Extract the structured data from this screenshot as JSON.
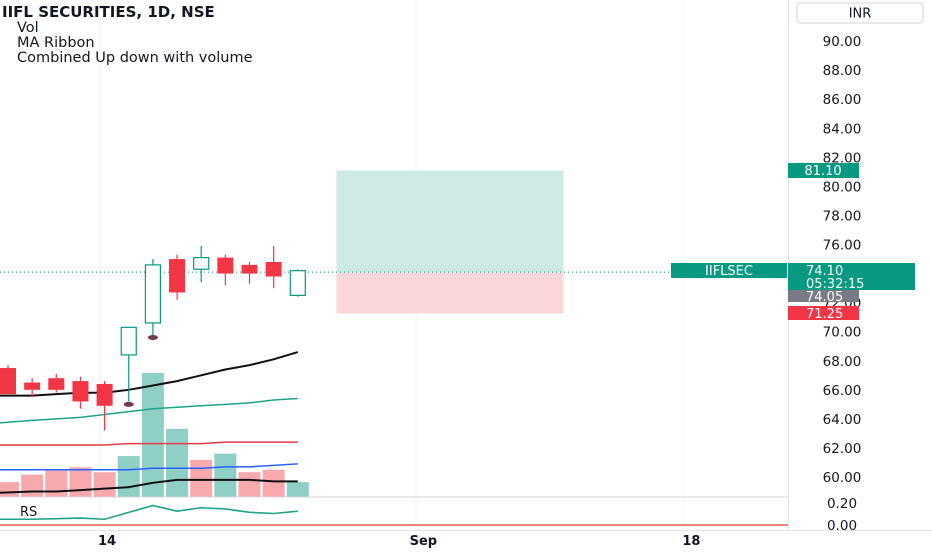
{
  "legend": {
    "title": "IIFL SECURITIES, 1D, NSE",
    "indicators": [
      "Vol",
      "MA Ribbon",
      "Combined Up down with volume"
    ]
  },
  "currency": "INR",
  "price_axis": {
    "ticks": [
      "90.00",
      "88.00",
      "86.00",
      "84.00",
      "82.00",
      "80.00",
      "78.00",
      "76.00",
      "74.00",
      "72.00",
      "70.00",
      "68.00",
      "66.00",
      "64.00",
      "62.00",
      "60.00"
    ],
    "sub_ticks": [
      "0.20",
      "0.00"
    ]
  },
  "time_axis": {
    "labels": [
      {
        "text": "14",
        "bar": 4.1
      },
      {
        "text": "Sep",
        "bar": 17.2
      },
      {
        "text": "18",
        "bar": 28.3
      }
    ]
  },
  "rs_label": "RS",
  "badges": {
    "symbol": "IIFLSEC",
    "last_price": "74.10",
    "countdown": "05:32:15",
    "grey_price": "74.05",
    "target": "81.10",
    "stop": "71.25"
  },
  "colors": {
    "up": "#089981",
    "down": "#f23645",
    "vol_up": "#8fcfc6",
    "vol_down": "#f7a9ad",
    "target_zone": "#cdeae5",
    "stop_zone": "#fbd7d9",
    "ma_black": "#111111",
    "ma_green": "#1ea38a",
    "ma_red": "#e03a44",
    "ma_blue": "#2962ff"
  },
  "chart_data": {
    "type": "candlestick",
    "title": "IIFL SECURITIES, 1D, NSE",
    "ylim": [
      59.0,
      91.0
    ],
    "candles": [
      {
        "o": 67.5,
        "h": 67.7,
        "l": 65.7,
        "c": 65.7
      },
      {
        "o": 66.5,
        "h": 66.8,
        "l": 65.5,
        "c": 66.0
      },
      {
        "o": 66.8,
        "h": 67.1,
        "l": 65.8,
        "c": 66.0
      },
      {
        "o": 66.6,
        "h": 66.9,
        "l": 64.7,
        "c": 65.2
      },
      {
        "o": 66.4,
        "h": 66.6,
        "l": 63.2,
        "c": 64.9
      },
      {
        "o": 68.4,
        "h": 70.3,
        "l": 65.2,
        "c": 70.3
      },
      {
        "o": 70.6,
        "h": 75.0,
        "l": 69.4,
        "c": 74.6
      },
      {
        "o": 75.0,
        "h": 75.3,
        "l": 72.2,
        "c": 72.7
      },
      {
        "o": 74.3,
        "h": 75.9,
        "l": 73.4,
        "c": 75.1
      },
      {
        "o": 75.1,
        "h": 75.3,
        "l": 73.2,
        "c": 74.0
      },
      {
        "o": 74.6,
        "h": 74.8,
        "l": 73.3,
        "c": 74.0
      },
      {
        "o": 74.8,
        "h": 75.9,
        "l": 73.0,
        "c": 73.8
      },
      {
        "o": 72.5,
        "h": 74.3,
        "l": 72.4,
        "c": 74.2
      }
    ],
    "volume": {
      "ylim": [
        0,
        100
      ],
      "values": [
        12,
        18,
        22,
        24,
        20,
        33,
        100,
        55,
        30,
        35,
        20,
        22,
        12
      ],
      "directions": [
        "down",
        "down",
        "down",
        "down",
        "down",
        "up",
        "up",
        "up",
        "down",
        "up",
        "down",
        "down",
        "up"
      ]
    },
    "ma_ribbon": [
      {
        "color": "#111111",
        "values": [
          65.6,
          65.6,
          65.7,
          65.8,
          65.8,
          66.0,
          66.3,
          66.6,
          67.0,
          67.4,
          67.7,
          68.1,
          68.6
        ]
      },
      {
        "color": "#1ea38a",
        "values": [
          63.7,
          63.9,
          64.0,
          64.1,
          64.3,
          64.5,
          64.7,
          64.8,
          64.9,
          65.0,
          65.1,
          65.3,
          65.4
        ]
      },
      {
        "color": "#e03a44",
        "values": [
          62.2,
          62.2,
          62.2,
          62.2,
          62.2,
          62.3,
          62.3,
          62.3,
          62.3,
          62.4,
          62.4,
          62.4,
          62.4
        ]
      },
      {
        "color": "#2962ff",
        "values": [
          60.5,
          60.5,
          60.5,
          60.5,
          60.5,
          60.5,
          60.6,
          60.6,
          60.6,
          60.7,
          60.7,
          60.8,
          60.9
        ]
      },
      {
        "color": "#111111",
        "values": [
          58.9,
          59.0,
          59.0,
          59.1,
          59.2,
          59.3,
          59.6,
          59.8,
          59.8,
          59.8,
          59.8,
          59.7,
          59.7
        ]
      }
    ],
    "rs_line": [
      0.05,
      0.05,
      0.055,
      0.06,
      0.05,
      0.11,
      0.17,
      0.12,
      0.15,
      0.14,
      0.11,
      0.1,
      0.12
    ],
    "markers": [
      {
        "bar": 5,
        "price": 65.0
      },
      {
        "bar": 6,
        "price": 69.6
      }
    ],
    "position": {
      "target": 81.1,
      "entry": 74.1,
      "stop": 71.25,
      "start_bar": 13.6,
      "end_bar": 23.0
    },
    "current_price": 74.1
  }
}
